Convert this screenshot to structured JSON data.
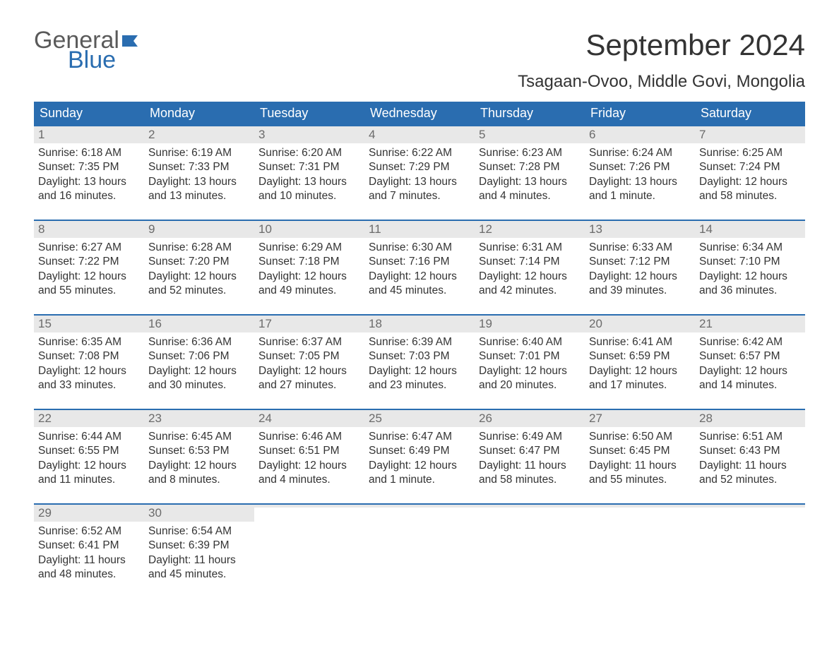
{
  "logo": {
    "word1": "General",
    "word2": "Blue",
    "word1_color": "#5a5a5a",
    "word2_color": "#2a6db0",
    "flag_color": "#2a6db0"
  },
  "title": "September 2024",
  "location": "Tsagaan-Ovoo, Middle Govi, Mongolia",
  "colors": {
    "header_bg": "#2a6db0",
    "header_text": "#ffffff",
    "daynum_bg": "#e8e8e8",
    "daynum_text": "#6b6b6b",
    "body_text": "#333333",
    "week_border": "#2a6db0",
    "page_bg": "#ffffff"
  },
  "typography": {
    "title_fontsize": 42,
    "location_fontsize": 24,
    "weekday_fontsize": 18,
    "daynum_fontsize": 17,
    "body_fontsize": 15.5,
    "font_family": "Arial"
  },
  "weekdays": [
    "Sunday",
    "Monday",
    "Tuesday",
    "Wednesday",
    "Thursday",
    "Friday",
    "Saturday"
  ],
  "weeks": [
    [
      {
        "n": "1",
        "sunrise": "Sunrise: 6:18 AM",
        "sunset": "Sunset: 7:35 PM",
        "day1": "Daylight: 13 hours",
        "day2": "and 16 minutes."
      },
      {
        "n": "2",
        "sunrise": "Sunrise: 6:19 AM",
        "sunset": "Sunset: 7:33 PM",
        "day1": "Daylight: 13 hours",
        "day2": "and 13 minutes."
      },
      {
        "n": "3",
        "sunrise": "Sunrise: 6:20 AM",
        "sunset": "Sunset: 7:31 PM",
        "day1": "Daylight: 13 hours",
        "day2": "and 10 minutes."
      },
      {
        "n": "4",
        "sunrise": "Sunrise: 6:22 AM",
        "sunset": "Sunset: 7:29 PM",
        "day1": "Daylight: 13 hours",
        "day2": "and 7 minutes."
      },
      {
        "n": "5",
        "sunrise": "Sunrise: 6:23 AM",
        "sunset": "Sunset: 7:28 PM",
        "day1": "Daylight: 13 hours",
        "day2": "and 4 minutes."
      },
      {
        "n": "6",
        "sunrise": "Sunrise: 6:24 AM",
        "sunset": "Sunset: 7:26 PM",
        "day1": "Daylight: 13 hours",
        "day2": "and 1 minute."
      },
      {
        "n": "7",
        "sunrise": "Sunrise: 6:25 AM",
        "sunset": "Sunset: 7:24 PM",
        "day1": "Daylight: 12 hours",
        "day2": "and 58 minutes."
      }
    ],
    [
      {
        "n": "8",
        "sunrise": "Sunrise: 6:27 AM",
        "sunset": "Sunset: 7:22 PM",
        "day1": "Daylight: 12 hours",
        "day2": "and 55 minutes."
      },
      {
        "n": "9",
        "sunrise": "Sunrise: 6:28 AM",
        "sunset": "Sunset: 7:20 PM",
        "day1": "Daylight: 12 hours",
        "day2": "and 52 minutes."
      },
      {
        "n": "10",
        "sunrise": "Sunrise: 6:29 AM",
        "sunset": "Sunset: 7:18 PM",
        "day1": "Daylight: 12 hours",
        "day2": "and 49 minutes."
      },
      {
        "n": "11",
        "sunrise": "Sunrise: 6:30 AM",
        "sunset": "Sunset: 7:16 PM",
        "day1": "Daylight: 12 hours",
        "day2": "and 45 minutes."
      },
      {
        "n": "12",
        "sunrise": "Sunrise: 6:31 AM",
        "sunset": "Sunset: 7:14 PM",
        "day1": "Daylight: 12 hours",
        "day2": "and 42 minutes."
      },
      {
        "n": "13",
        "sunrise": "Sunrise: 6:33 AM",
        "sunset": "Sunset: 7:12 PM",
        "day1": "Daylight: 12 hours",
        "day2": "and 39 minutes."
      },
      {
        "n": "14",
        "sunrise": "Sunrise: 6:34 AM",
        "sunset": "Sunset: 7:10 PM",
        "day1": "Daylight: 12 hours",
        "day2": "and 36 minutes."
      }
    ],
    [
      {
        "n": "15",
        "sunrise": "Sunrise: 6:35 AM",
        "sunset": "Sunset: 7:08 PM",
        "day1": "Daylight: 12 hours",
        "day2": "and 33 minutes."
      },
      {
        "n": "16",
        "sunrise": "Sunrise: 6:36 AM",
        "sunset": "Sunset: 7:06 PM",
        "day1": "Daylight: 12 hours",
        "day2": "and 30 minutes."
      },
      {
        "n": "17",
        "sunrise": "Sunrise: 6:37 AM",
        "sunset": "Sunset: 7:05 PM",
        "day1": "Daylight: 12 hours",
        "day2": "and 27 minutes."
      },
      {
        "n": "18",
        "sunrise": "Sunrise: 6:39 AM",
        "sunset": "Sunset: 7:03 PM",
        "day1": "Daylight: 12 hours",
        "day2": "and 23 minutes."
      },
      {
        "n": "19",
        "sunrise": "Sunrise: 6:40 AM",
        "sunset": "Sunset: 7:01 PM",
        "day1": "Daylight: 12 hours",
        "day2": "and 20 minutes."
      },
      {
        "n": "20",
        "sunrise": "Sunrise: 6:41 AM",
        "sunset": "Sunset: 6:59 PM",
        "day1": "Daylight: 12 hours",
        "day2": "and 17 minutes."
      },
      {
        "n": "21",
        "sunrise": "Sunrise: 6:42 AM",
        "sunset": "Sunset: 6:57 PM",
        "day1": "Daylight: 12 hours",
        "day2": "and 14 minutes."
      }
    ],
    [
      {
        "n": "22",
        "sunrise": "Sunrise: 6:44 AM",
        "sunset": "Sunset: 6:55 PM",
        "day1": "Daylight: 12 hours",
        "day2": "and 11 minutes."
      },
      {
        "n": "23",
        "sunrise": "Sunrise: 6:45 AM",
        "sunset": "Sunset: 6:53 PM",
        "day1": "Daylight: 12 hours",
        "day2": "and 8 minutes."
      },
      {
        "n": "24",
        "sunrise": "Sunrise: 6:46 AM",
        "sunset": "Sunset: 6:51 PM",
        "day1": "Daylight: 12 hours",
        "day2": "and 4 minutes."
      },
      {
        "n": "25",
        "sunrise": "Sunrise: 6:47 AM",
        "sunset": "Sunset: 6:49 PM",
        "day1": "Daylight: 12 hours",
        "day2": "and 1 minute."
      },
      {
        "n": "26",
        "sunrise": "Sunrise: 6:49 AM",
        "sunset": "Sunset: 6:47 PM",
        "day1": "Daylight: 11 hours",
        "day2": "and 58 minutes."
      },
      {
        "n": "27",
        "sunrise": "Sunrise: 6:50 AM",
        "sunset": "Sunset: 6:45 PM",
        "day1": "Daylight: 11 hours",
        "day2": "and 55 minutes."
      },
      {
        "n": "28",
        "sunrise": "Sunrise: 6:51 AM",
        "sunset": "Sunset: 6:43 PM",
        "day1": "Daylight: 11 hours",
        "day2": "and 52 minutes."
      }
    ],
    [
      {
        "n": "29",
        "sunrise": "Sunrise: 6:52 AM",
        "sunset": "Sunset: 6:41 PM",
        "day1": "Daylight: 11 hours",
        "day2": "and 48 minutes."
      },
      {
        "n": "30",
        "sunrise": "Sunrise: 6:54 AM",
        "sunset": "Sunset: 6:39 PM",
        "day1": "Daylight: 11 hours",
        "day2": "and 45 minutes."
      },
      {
        "n": "",
        "sunrise": "",
        "sunset": "",
        "day1": "",
        "day2": ""
      },
      {
        "n": "",
        "sunrise": "",
        "sunset": "",
        "day1": "",
        "day2": ""
      },
      {
        "n": "",
        "sunrise": "",
        "sunset": "",
        "day1": "",
        "day2": ""
      },
      {
        "n": "",
        "sunrise": "",
        "sunset": "",
        "day1": "",
        "day2": ""
      },
      {
        "n": "",
        "sunrise": "",
        "sunset": "",
        "day1": "",
        "day2": ""
      }
    ]
  ]
}
